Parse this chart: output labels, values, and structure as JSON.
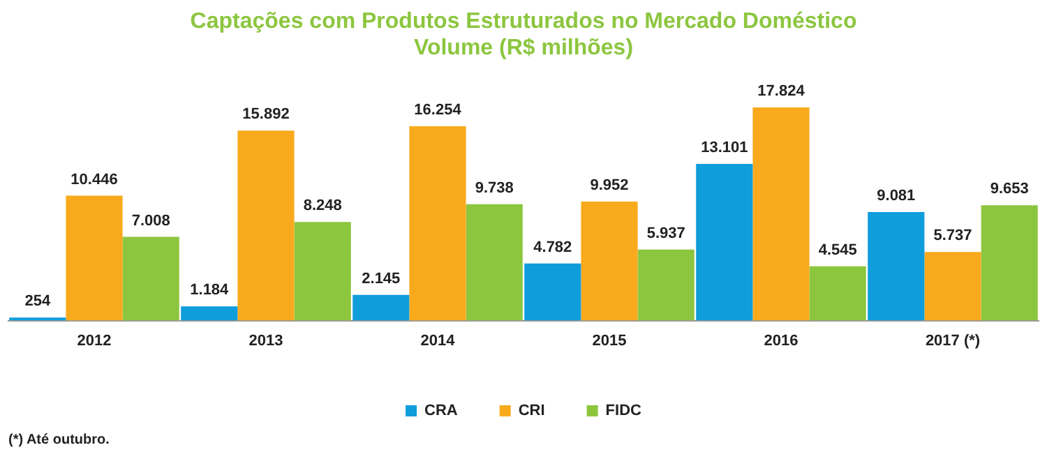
{
  "chart_data": {
    "type": "bar",
    "title": [
      "Captações com Produtos Estruturados no Mercado Doméstico",
      "Volume (R$ milhões)"
    ],
    "categories": [
      "2012",
      "2013",
      "2014",
      "2015",
      "2016",
      "2017 (*)"
    ],
    "series": [
      {
        "name": "CRA",
        "color": "#0f9ddb",
        "values": [
          254,
          1184,
          2145,
          4782,
          13101,
          9081
        ],
        "value_labels": [
          "254",
          "1.184",
          "2.145",
          "4.782",
          "13.101",
          "9.081"
        ]
      },
      {
        "name": "CRI",
        "color": "#f8aa1c",
        "values": [
          10446,
          15892,
          16254,
          9952,
          17824,
          5737
        ],
        "value_labels": [
          "10.446",
          "15.892",
          "16.254",
          "9.952",
          "17.824",
          "5.737"
        ]
      },
      {
        "name": "FIDC",
        "color": "#8cc63f",
        "values": [
          7008,
          8248,
          9738,
          5937,
          4545,
          9653
        ],
        "value_labels": [
          "7.008",
          "8.248",
          "9.738",
          "5.937",
          "4.545",
          "9.653"
        ]
      }
    ],
    "legend": "bottom",
    "annotations": [
      "(*) Até outubro."
    ]
  }
}
